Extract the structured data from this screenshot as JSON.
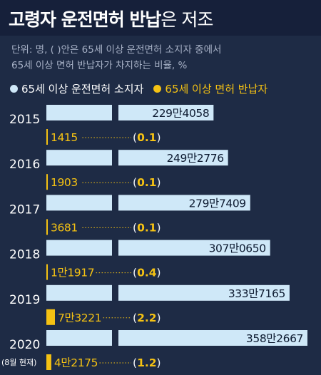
{
  "title": {
    "bold": "고령자 운전면허 반납",
    "light": "은 저조"
  },
  "note_line1": "단위: 명, ( )안은 65세 이상 운전면허 소지자 중에서",
  "note_line2": "65세 이상 면허 반납자가 차지하는 비율, %",
  "legend": {
    "holders": "65세 이상 운전면허 소지자",
    "returns": "65세 이상 면허 반납자"
  },
  "colors": {
    "holders": "#cfe8f8",
    "returns": "#f5c213",
    "background": "#1e2b45",
    "title_bar": "#16203a"
  },
  "chart_data": {
    "type": "bar",
    "categories": [
      "2015",
      "2016",
      "2017",
      "2018",
      "2019",
      "2020"
    ],
    "category_notes": [
      "",
      "",
      "",
      "",
      "",
      "(8월 현재)"
    ],
    "series": [
      {
        "name": "65세 이상 운전면허 소지자",
        "values": [
          2294058,
          2492776,
          2797409,
          3070650,
          3337165,
          3582667
        ],
        "labels": [
          "229만4058",
          "249만2776",
          "279만7409",
          "307만0650",
          "333만7165",
          "358만2667"
        ]
      },
      {
        "name": "65세 이상 면허 반납자",
        "values": [
          1415,
          1903,
          3681,
          11917,
          73221,
          42175
        ],
        "labels": [
          "1415",
          "1903",
          "3681",
          "1만1917",
          "7만3221",
          "4만2175"
        ]
      }
    ],
    "ratio": [
      0.1,
      0.1,
      0.1,
      0.4,
      2.2,
      1.2
    ],
    "ratio_labels": [
      "0.1",
      "0.1",
      "0.1",
      "0.4",
      "2.2",
      "1.2"
    ]
  }
}
